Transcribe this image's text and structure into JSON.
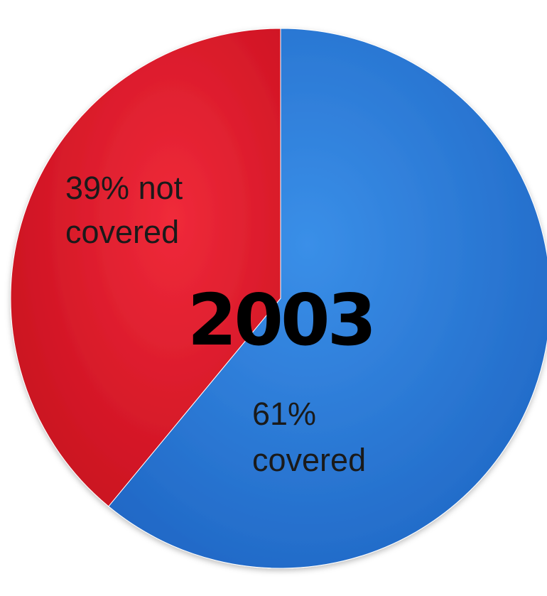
{
  "chart_data": {
    "type": "pie",
    "title": "",
    "center_label": "2003",
    "start_angle_deg": 0,
    "direction": "clockwise",
    "slices": [
      {
        "category": "covered",
        "value": 61,
        "label_lines": [
          "61%",
          "covered"
        ],
        "color": "#2f7fd8"
      },
      {
        "category": "not covered",
        "value": 39,
        "label_lines": [
          "39% not",
          "covered"
        ],
        "color": "#e11f2e"
      }
    ]
  }
}
